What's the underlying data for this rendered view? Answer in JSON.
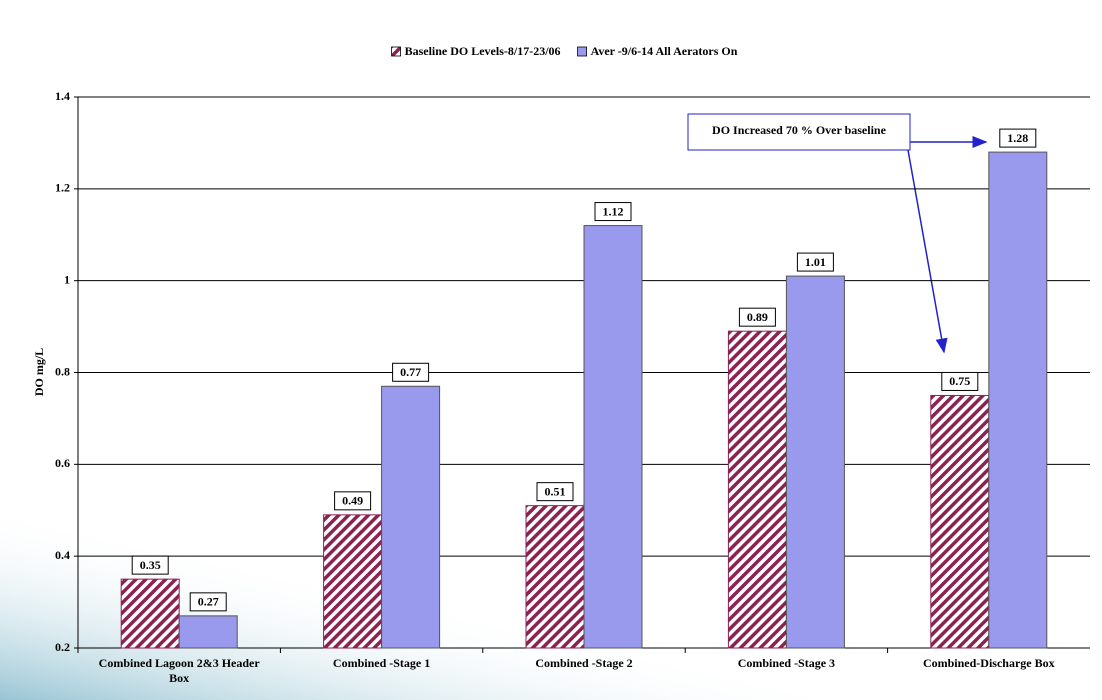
{
  "chart_data": {
    "type": "bar",
    "categories": [
      "Combined Lagoon 2&3 Header Box",
      "Combined -Stage 1",
      "Combined -Stage 2",
      "Combined -Stage 3",
      "Combined-Discharge Box"
    ],
    "series": [
      {
        "name": "Baseline DO Levels-8/17-23/06",
        "color": "#8b2252",
        "values": [
          0.35,
          0.49,
          0.51,
          0.89,
          0.75
        ]
      },
      {
        "name": "Aver -9/6-14 All Aerators On",
        "color": "#9999ee",
        "values": [
          0.27,
          0.77,
          1.12,
          1.01,
          1.28
        ]
      }
    ],
    "ylabel": "DO  mg/L",
    "ylim": [
      0.2,
      1.4
    ],
    "yticks": [
      0.2,
      0.4,
      0.6,
      0.8,
      1,
      1.2,
      1.4
    ],
    "grid": true,
    "annotation": "DO Increased 70 %  Over baseline",
    "legend": "top"
  }
}
